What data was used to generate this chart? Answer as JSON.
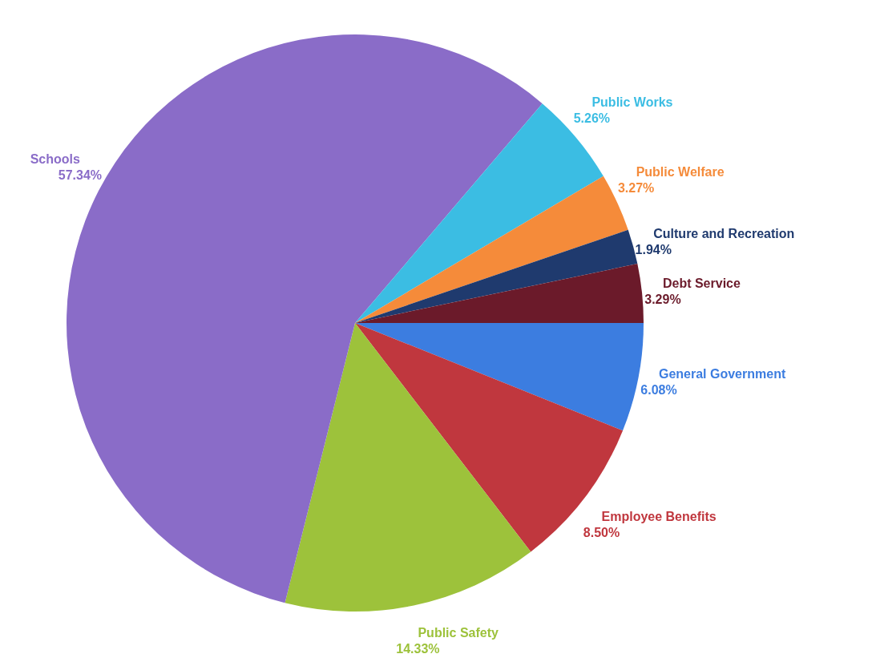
{
  "chart_data": {
    "type": "pie",
    "categories": [
      "General Government",
      "Employee Benefits",
      "Public Safety",
      "Schools",
      "Public Works",
      "Public Welfare",
      "Culture and Recreation",
      "Debt Service"
    ],
    "values": [
      6.08,
      8.5,
      14.33,
      57.34,
      5.26,
      3.27,
      1.94,
      3.29
    ],
    "colors": [
      "#3c7de0",
      "#c0373e",
      "#9dc23b",
      "#8a6cc8",
      "#3bbde3",
      "#f58b3a",
      "#1f3a6e",
      "#6b1a2a"
    ],
    "value_labels": [
      "6.08%",
      "8.50%",
      "14.33%",
      "57.34%",
      "5.26%",
      "3.27%",
      "1.94%",
      "3.29%"
    ],
    "legend": false
  }
}
